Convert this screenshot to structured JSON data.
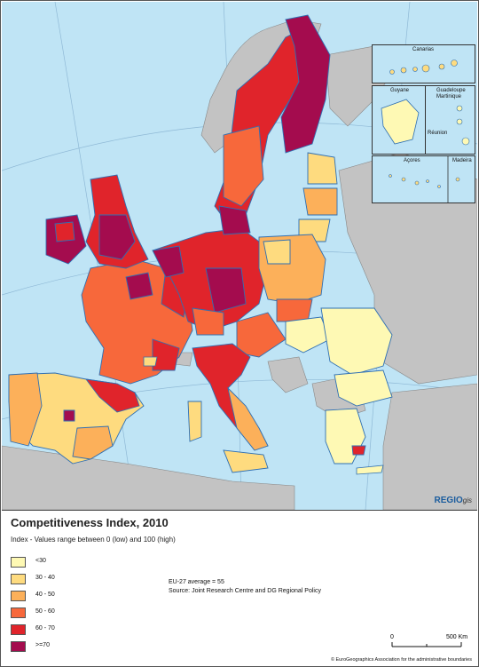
{
  "map": {
    "title": "Competitiveness Index, 2010",
    "subtitle": "Index - Values range between 0 (low) and 100 (high)",
    "insets": [
      "Canarias",
      "Guyane",
      "Guadeloupe",
      "Martinique",
      "Réunion",
      "Açores",
      "Madeira"
    ],
    "brand_main": "REGIO",
    "brand_sub": "gis",
    "average_note": "EU-27 average = 55",
    "source_note": "Source: Joint Research Centre and DG Regional Policy",
    "scale_zero": "0",
    "scale_max": "500 Km",
    "copyright": "© EuroGeographics Association for the administrative boundaries"
  },
  "legend": [
    {
      "label": "<30",
      "color": "#fef9b4"
    },
    {
      "label": "30 - 40",
      "color": "#fedb7f"
    },
    {
      "label": "40 - 50",
      "color": "#fcb05a"
    },
    {
      "label": "50 - 60",
      "color": "#f7683b"
    },
    {
      "label": "60 - 70",
      "color": "#e0242b"
    },
    {
      "label": ">=70",
      "color": "#a40c4e"
    }
  ],
  "colors": {
    "sea": "#bfe4f5",
    "non_eu_land": "#c3c3c3",
    "border": "#2f6fb3"
  }
}
